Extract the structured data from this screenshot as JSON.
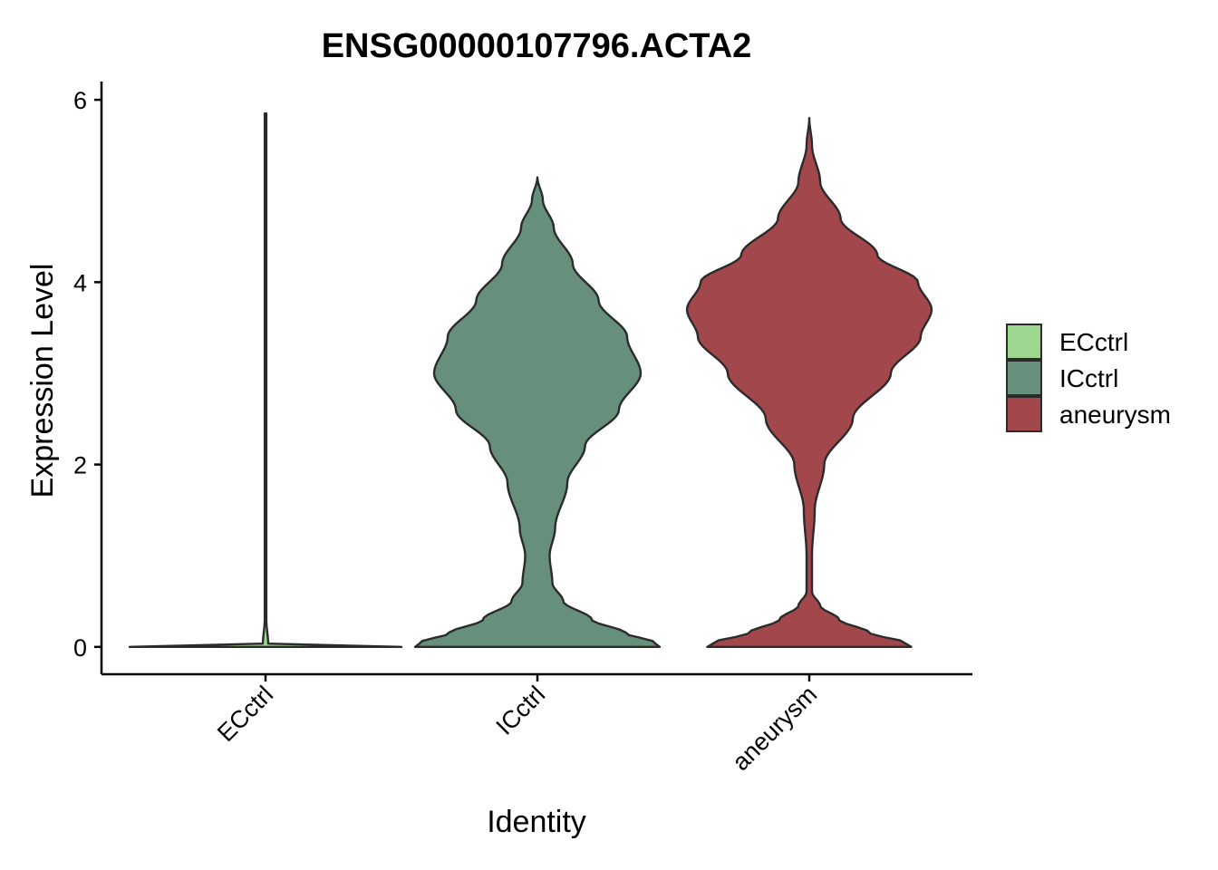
{
  "chart_data": {
    "type": "violin",
    "title": "ENSG00000107796.ACTA2",
    "xlabel": "Identity",
    "ylabel": "Expression Level",
    "categories": [
      "ECctrl",
      "ICctrl",
      "aneurysm"
    ],
    "y_ticks": [
      0,
      2,
      4,
      6
    ],
    "ylim": [
      -0.3,
      6.2
    ],
    "grid": false,
    "legend": {
      "position": "right",
      "entries": [
        {
          "label": "ECctrl",
          "color": "#9cd68f"
        },
        {
          "label": "ICctrl",
          "color": "#66907b"
        },
        {
          "label": "aneurysm",
          "color": "#a2484c"
        }
      ]
    },
    "series": [
      {
        "category": "ECctrl",
        "color": "#9cd68f",
        "max": 5.85,
        "density_profile": [
          [
            0,
            1.0
          ],
          [
            0.01,
            0.4
          ],
          [
            0.02,
            0.02
          ],
          [
            0.3,
            0.006
          ],
          [
            1.0,
            0.006
          ],
          [
            3.0,
            0.006
          ],
          [
            5.85,
            0.006
          ]
        ]
      },
      {
        "category": "ICctrl",
        "color": "#66907b",
        "max": 5.15,
        "density_profile": [
          [
            0,
            0.9
          ],
          [
            0.05,
            0.86
          ],
          [
            0.15,
            0.65
          ],
          [
            0.3,
            0.4
          ],
          [
            0.5,
            0.19
          ],
          [
            0.7,
            0.11
          ],
          [
            1.0,
            0.09
          ],
          [
            1.3,
            0.13
          ],
          [
            1.8,
            0.22
          ],
          [
            2.2,
            0.35
          ],
          [
            2.6,
            0.6
          ],
          [
            3.0,
            0.76
          ],
          [
            3.4,
            0.66
          ],
          [
            3.8,
            0.45
          ],
          [
            4.2,
            0.26
          ],
          [
            4.6,
            0.12
          ],
          [
            4.9,
            0.04
          ],
          [
            5.15,
            0.0
          ]
        ]
      },
      {
        "category": "aneurysm",
        "color": "#a2484c",
        "max": 5.8,
        "density_profile": [
          [
            0,
            0.75
          ],
          [
            0.05,
            0.7
          ],
          [
            0.15,
            0.45
          ],
          [
            0.3,
            0.22
          ],
          [
            0.45,
            0.08
          ],
          [
            0.6,
            0.02
          ],
          [
            1.0,
            0.02
          ],
          [
            1.5,
            0.04
          ],
          [
            2.0,
            0.11
          ],
          [
            2.5,
            0.32
          ],
          [
            3.0,
            0.6
          ],
          [
            3.4,
            0.82
          ],
          [
            3.7,
            0.9
          ],
          [
            4.0,
            0.8
          ],
          [
            4.3,
            0.5
          ],
          [
            4.7,
            0.23
          ],
          [
            5.1,
            0.08
          ],
          [
            5.5,
            0.02
          ],
          [
            5.8,
            0.0
          ]
        ]
      }
    ]
  }
}
